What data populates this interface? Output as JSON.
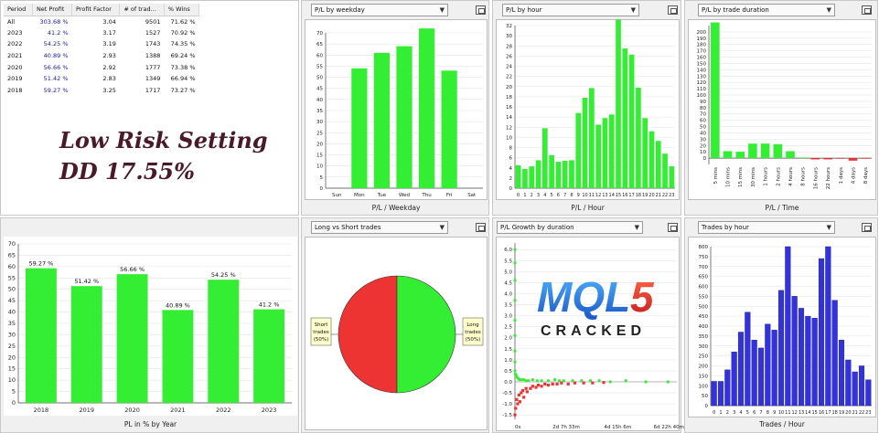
{
  "stats_table": {
    "headers": [
      "Period",
      "Net Profit",
      "Profit Factor",
      "# of trad...",
      "% Wins"
    ],
    "rows": [
      [
        "All",
        "303.68 %",
        "3.04",
        "9501",
        "71.62 %"
      ],
      [
        "2023",
        "41.2 %",
        "3.17",
        "1527",
        "70.92 %"
      ],
      [
        "2022",
        "54.25 %",
        "3.19",
        "1743",
        "74.35 %"
      ],
      [
        "2021",
        "40.89 %",
        "2.93",
        "1388",
        "69.24 %"
      ],
      [
        "2020",
        "56.66 %",
        "2.92",
        "1777",
        "73.38 %"
      ],
      [
        "2019",
        "51.42 %",
        "2.83",
        "1349",
        "66.94 %"
      ],
      [
        "2018",
        "59.27 %",
        "3.25",
        "1717",
        "73.27 %"
      ]
    ]
  },
  "overlay_text": {
    "line1": "Low Risk Setting",
    "line2": "DD 17.55%"
  },
  "watermark": {
    "logo": "MQL5",
    "sub": "CRACKED"
  },
  "colors": {
    "green": "#33ee33",
    "red": "#ee3333",
    "blue": "#3333dd",
    "panel_bg": "#f0f0f0"
  },
  "panels": {
    "weekday": {
      "dropdown": "P/L by weekday",
      "xlabel": "P/L / Weekday"
    },
    "hour": {
      "dropdown": "P/L by hour",
      "xlabel": "P/L / Hour"
    },
    "duration": {
      "dropdown": "P/L by trade duration",
      "xlabel": "P/L / Time"
    },
    "year": {
      "xlabel": "PL in % by Year"
    },
    "longshort": {
      "dropdown": "Long vs Short trades"
    },
    "growth": {
      "dropdown": "P/L Growth by duration"
    },
    "trades_hour": {
      "dropdown": "Trades by hour",
      "xlabel": "Trades / Hour"
    }
  },
  "chart_data": [
    {
      "id": "weekday",
      "type": "bar",
      "categories": [
        "Sun",
        "Mon",
        "Tue",
        "Wed",
        "Thu",
        "Fri",
        "Sat"
      ],
      "values": [
        0,
        54,
        61,
        64,
        72,
        53,
        0
      ],
      "ylim": [
        0,
        70
      ],
      "yticks": [
        0,
        5,
        10,
        15,
        20,
        25,
        30,
        35,
        40,
        45,
        50,
        55,
        60,
        65,
        70
      ],
      "color": "#33ee33",
      "xlabel": "P/L / Weekday"
    },
    {
      "id": "hour",
      "type": "bar",
      "categories": [
        "0",
        "1",
        "2",
        "3",
        "4",
        "5",
        "6",
        "7",
        "8",
        "9",
        "10",
        "11",
        "12",
        "13",
        "14",
        "15",
        "16",
        "17",
        "18",
        "19",
        "20",
        "21",
        "22",
        "23"
      ],
      "values": [
        4.5,
        3.8,
        4.3,
        5.5,
        11.8,
        6.5,
        5.2,
        5.4,
        5.5,
        14.8,
        17.8,
        19.7,
        12.5,
        13.8,
        14.5,
        33.2,
        27.5,
        26.3,
        19.8,
        13.8,
        11.2,
        9.3,
        6.8,
        4.3
      ],
      "ylim": [
        0,
        32
      ],
      "yticks": [
        0,
        2,
        4,
        6,
        8,
        10,
        12,
        14,
        16,
        18,
        20,
        22,
        24,
        26,
        28,
        30,
        32
      ],
      "color": "#33ee33",
      "xlabel": "P/L / Hour"
    },
    {
      "id": "duration",
      "type": "bar",
      "categories": [
        "5 mins",
        "10 mins",
        "15 mins",
        "30 mins",
        "1 hours",
        "2 hours",
        "4 hours",
        "8 hours",
        "16 hours",
        "22 hours",
        "1 days",
        "4 days",
        "8 days"
      ],
      "values": [
        215,
        11,
        10,
        23,
        23,
        22,
        11,
        1,
        -2,
        -2,
        -1,
        -4,
        -1
      ],
      "ylim": [
        -10,
        210
      ],
      "yticks": [
        0,
        10,
        20,
        30,
        40,
        50,
        60,
        70,
        80,
        90,
        100,
        110,
        120,
        130,
        140,
        150,
        160,
        170,
        180,
        190,
        200
      ],
      "ytick_labels": [
        "0",
        "10",
        "20",
        "30",
        "40",
        "50",
        "60",
        "70",
        "80",
        "90",
        "100",
        "110",
        "120",
        "130",
        "140",
        "150",
        "160",
        "170",
        "180",
        "190",
        "200"
      ],
      "color": "#33ee33",
      "neg_color": "#ee3333",
      "xlabel": "P/L / Time"
    },
    {
      "id": "year",
      "type": "bar",
      "categories": [
        "2018",
        "2019",
        "2020",
        "2021",
        "2022",
        "2023"
      ],
      "values": [
        59.27,
        51.42,
        56.66,
        40.89,
        54.25,
        41.2
      ],
      "data_labels": [
        "59.27 %",
        "51.42 %",
        "56.66 %",
        "40.89 %",
        "54.25 %",
        "41.2 %"
      ],
      "ylim": [
        0,
        70
      ],
      "yticks": [
        0,
        5,
        10,
        15,
        20,
        25,
        30,
        35,
        40,
        45,
        50,
        55,
        60,
        65,
        70
      ],
      "color": "#33ee33",
      "xlabel": "PL in % by Year"
    },
    {
      "id": "longshort",
      "type": "pie",
      "slices": [
        {
          "name": "Short trades",
          "label": [
            "Short",
            "trades",
            "(50%)"
          ],
          "value": 50,
          "color": "#ee3333"
        },
        {
          "name": "Long trades",
          "label": [
            "Long",
            "trades",
            "(50%)"
          ],
          "value": 50,
          "color": "#33ee33"
        }
      ]
    },
    {
      "id": "growth",
      "type": "scatter",
      "yticks": [
        -1.5,
        -1.0,
        -0.5,
        0.0,
        0.5,
        1.0,
        1.5,
        2.0,
        2.5,
        3.0,
        3.5,
        4.0,
        4.5,
        5.0,
        5.5,
        6.0
      ],
      "ytick_labels": [
        "-1.5",
        "-1.0",
        "-0.5",
        "0.0",
        "0.5",
        "1.0",
        "1.5",
        "2.0",
        "2.5",
        "3.0",
        "3.5",
        "4.0",
        "4.5",
        "5.0",
        "5.5",
        "6.0"
      ],
      "ylim": [
        -1.7,
        6.3
      ],
      "xtick_labels": [
        "0s",
        "2d 7h 33m",
        "4d 15h 6m",
        "6d 22h 40m"
      ],
      "xticks_days": [
        0,
        2.31,
        4.63,
        6.94
      ],
      "xlim_days": [
        0,
        7.3
      ],
      "series": [
        {
          "name": "positive",
          "color": "#33ee33",
          "x_days": [
            0.0,
            0.0,
            0.0,
            0.0,
            0.0,
            0.0,
            0.0,
            0.0,
            0.0,
            0.02,
            0.05,
            0.1,
            0.15,
            0.2,
            0.3,
            0.4,
            0.5,
            0.6,
            0.8,
            1.0,
            1.2,
            1.5,
            1.8,
            2.0,
            2.2,
            2.6,
            3.0,
            3.4,
            3.8,
            4.3,
            5.0,
            5.9,
            6.9
          ],
          "y": [
            6.0,
            5.4,
            4.6,
            3.7,
            2.8,
            2.1,
            1.4,
            0.9,
            0.5,
            0.35,
            0.3,
            0.2,
            0.15,
            0.1,
            0.1,
            0.1,
            0.05,
            0.05,
            0.1,
            0.05,
            0.05,
            0.05,
            0.1,
            0.05,
            0.05,
            0.05,
            0.05,
            0.05,
            0.05,
            0.0,
            0.05,
            0.0,
            0.0
          ]
        },
        {
          "name": "negative",
          "color": "#ee3333",
          "x_days": [
            0.0,
            0.03,
            0.08,
            0.12,
            0.18,
            0.22,
            0.28,
            0.35,
            0.4,
            0.5,
            0.55,
            0.7,
            0.8,
            0.95,
            1.05,
            1.2,
            1.35,
            1.5,
            1.7,
            1.9,
            2.1,
            2.4,
            2.7,
            3.1,
            3.5,
            4.0
          ],
          "y": [
            -1.5,
            -1.2,
            -0.8,
            -1.0,
            -0.6,
            -0.9,
            -0.5,
            -0.4,
            -0.7,
            -0.3,
            -0.45,
            -0.3,
            -0.2,
            -0.25,
            -0.15,
            -0.2,
            -0.1,
            -0.15,
            -0.1,
            -0.1,
            -0.05,
            -0.1,
            -0.05,
            -0.05,
            -0.05,
            -0.03
          ]
        }
      ]
    },
    {
      "id": "trades_hour",
      "type": "bar",
      "categories": [
        "0",
        "1",
        "2",
        "3",
        "4",
        "5",
        "6",
        "7",
        "8",
        "9",
        "10",
        "11",
        "12",
        "13",
        "14",
        "15",
        "16",
        "17",
        "18",
        "19",
        "20",
        "21",
        "22",
        "23"
      ],
      "values": [
        122,
        122,
        180,
        270,
        370,
        470,
        330,
        290,
        410,
        380,
        580,
        800,
        550,
        490,
        450,
        440,
        740,
        800,
        530,
        330,
        230,
        170,
        200,
        130
      ],
      "ylim": [
        0,
        800
      ],
      "yticks": [
        0,
        50,
        100,
        150,
        200,
        250,
        300,
        350,
        400,
        450,
        500,
        550,
        600,
        650,
        700,
        750,
        800
      ],
      "color": "#3333dd",
      "xlabel": "Trades / Hour"
    }
  ]
}
